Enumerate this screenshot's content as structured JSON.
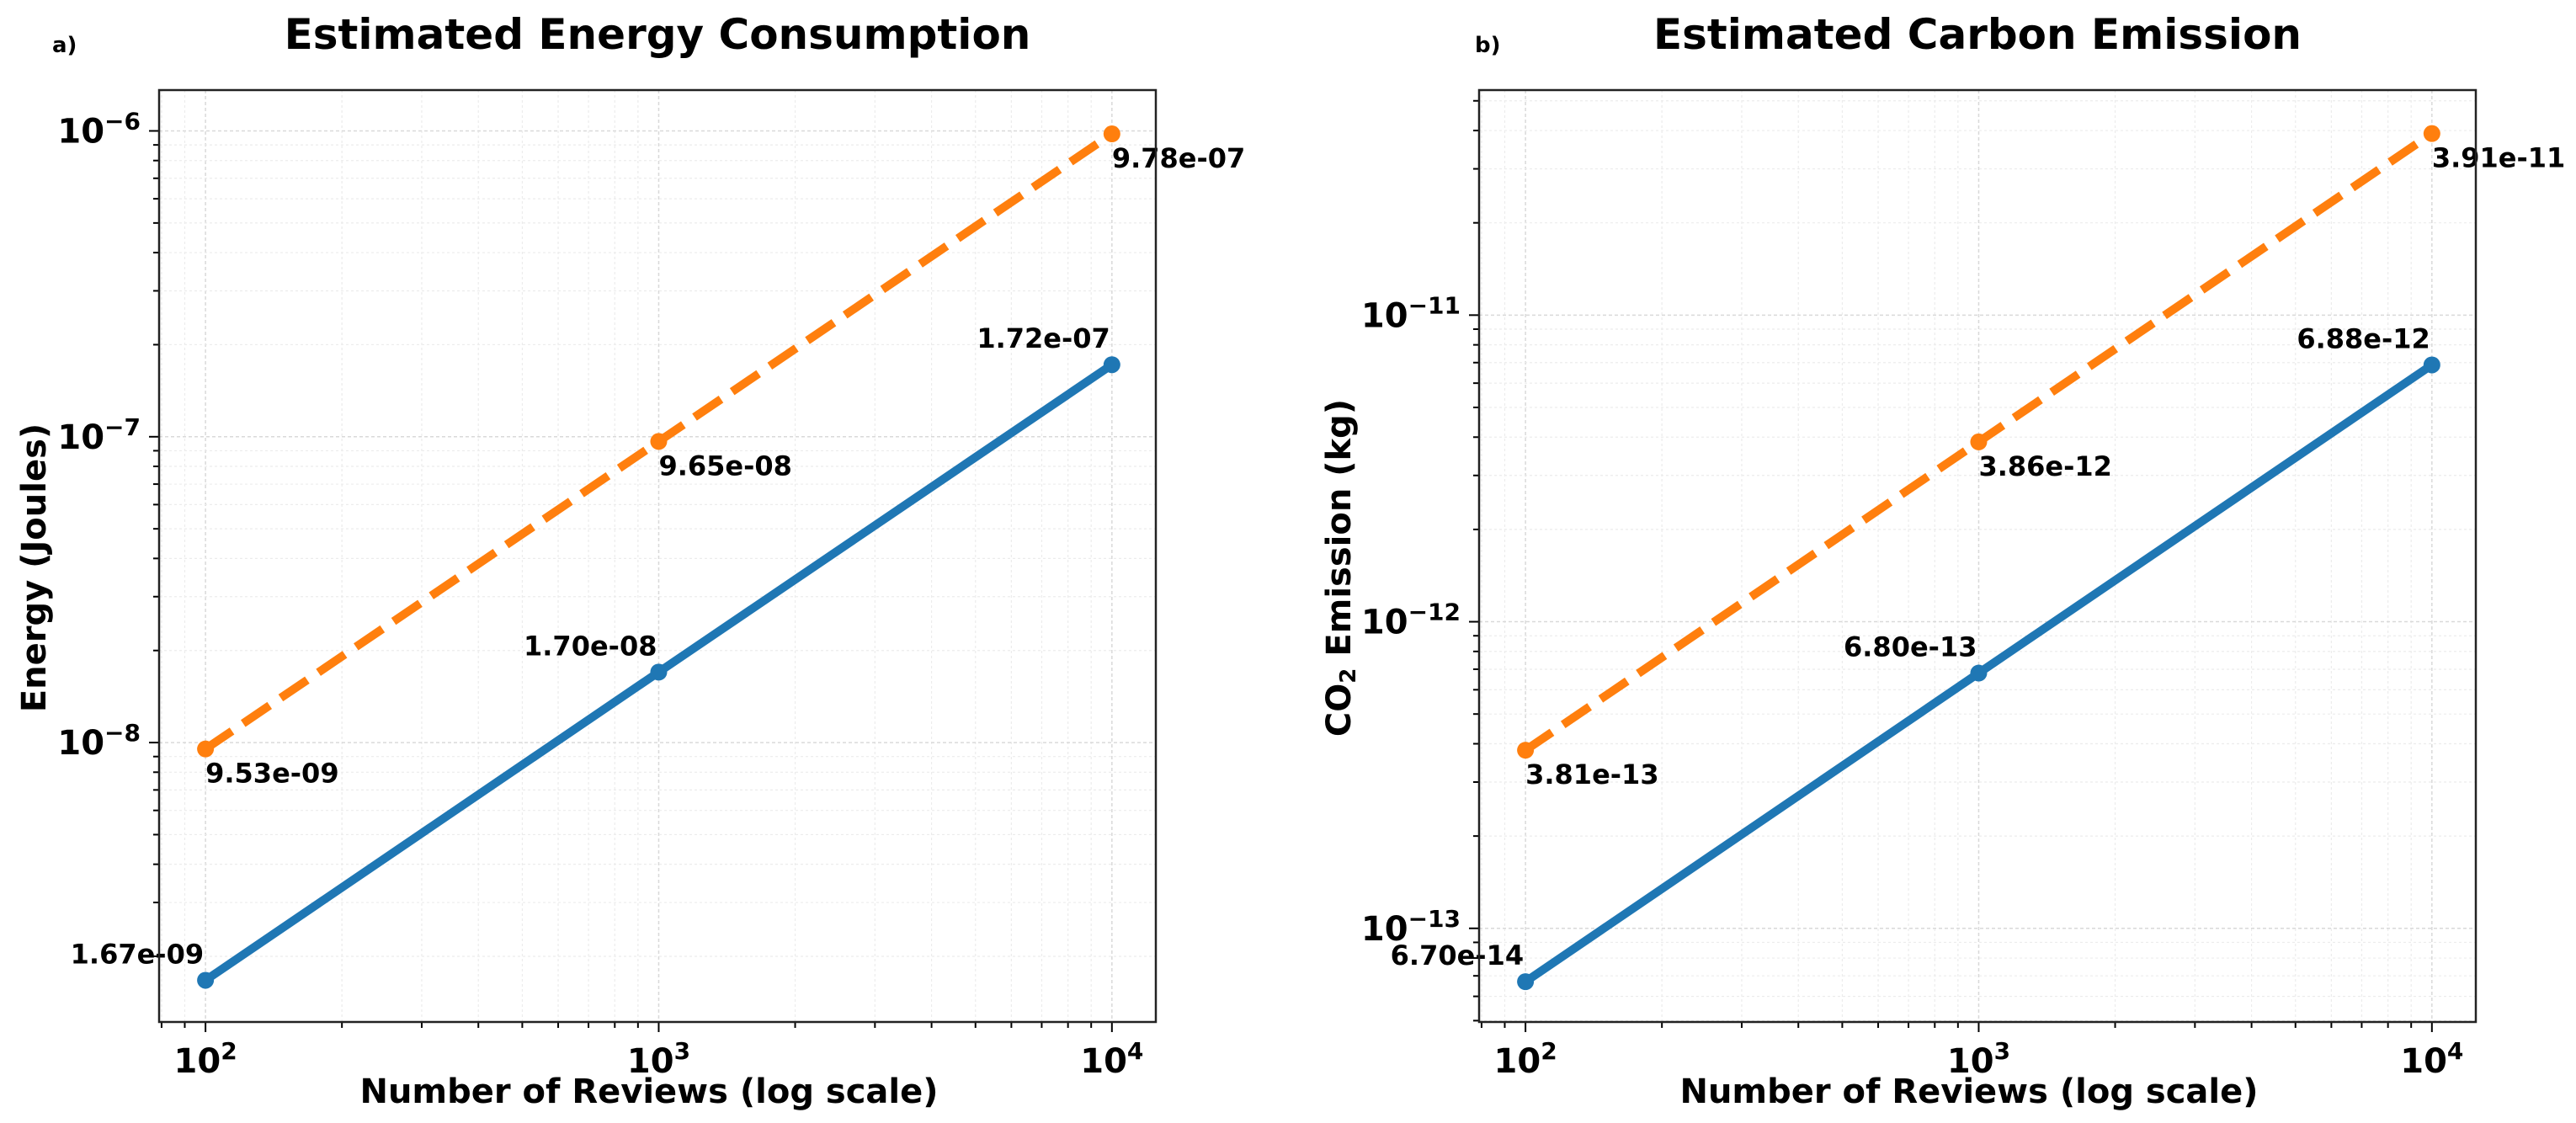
{
  "chart_data": [
    {
      "type": "line",
      "panel_label": "a)",
      "title": "Estimated Energy Consumption",
      "xlabel": "Number of Reviews (log scale)",
      "ylabel": "Energy (Joules)",
      "xscale": "log",
      "yscale": "log",
      "xlim": [
        79,
        12500
      ],
      "ylim": [
        1.22e-09,
        1.36e-06
      ],
      "grid": true,
      "x": [
        100,
        1000,
        10000
      ],
      "x_ticks": [
        {
          "value": 100,
          "base": "10",
          "exp": "2"
        },
        {
          "value": 1000,
          "base": "10",
          "exp": "3"
        },
        {
          "value": 10000,
          "base": "10",
          "exp": "4"
        }
      ],
      "y_ticks": [
        {
          "value": 1e-06,
          "base": "10",
          "exp": "−6"
        },
        {
          "value": 1e-07,
          "base": "10",
          "exp": "−7"
        },
        {
          "value": 1e-08,
          "base": "10",
          "exp": "−8"
        }
      ],
      "series": [
        {
          "name": "blue-solid",
          "color": "#1f77b4",
          "style": "solid",
          "values": [
            1.67e-09,
            1.7e-08,
            1.72e-07
          ],
          "labels": [
            "1.67e-09",
            "1.70e-08",
            "1.72e-07"
          ],
          "label_position": "above-left"
        },
        {
          "name": "orange-dashed",
          "color": "#ff7f0e",
          "style": "dashed",
          "values": [
            9.53e-09,
            9.65e-08,
            9.78e-07
          ],
          "labels": [
            "9.53e-09",
            "9.65e-08",
            "9.78e-07"
          ],
          "label_position": "below-right"
        }
      ]
    },
    {
      "type": "line",
      "panel_label": "b)",
      "title": "Estimated Carbon Emission",
      "xlabel": "Number of Reviews (log scale)",
      "ylabel_main": "CO",
      "ylabel_sub": "2",
      "ylabel_rest": " Emission (kg)",
      "xscale": "log",
      "yscale": "log",
      "xlim": [
        79,
        12500
      ],
      "ylim": [
        4.95e-14,
        5.42e-11
      ],
      "grid": true,
      "x": [
        100,
        1000,
        10000
      ],
      "x_ticks": [
        {
          "value": 100,
          "base": "10",
          "exp": "2"
        },
        {
          "value": 1000,
          "base": "10",
          "exp": "3"
        },
        {
          "value": 10000,
          "base": "10",
          "exp": "4"
        }
      ],
      "y_ticks": [
        {
          "value": 1e-11,
          "base": "10",
          "exp": "−11"
        },
        {
          "value": 1e-12,
          "base": "10",
          "exp": "−12"
        },
        {
          "value": 1e-13,
          "base": "10",
          "exp": "−13"
        }
      ],
      "series": [
        {
          "name": "blue-solid",
          "color": "#1f77b4",
          "style": "solid",
          "values": [
            6.7e-14,
            6.8e-13,
            6.88e-12
          ],
          "labels": [
            "6.70e-14",
            "6.80e-13",
            "6.88e-12"
          ],
          "label_position": "above-left"
        },
        {
          "name": "orange-dashed",
          "color": "#ff7f0e",
          "style": "dashed",
          "values": [
            3.81e-13,
            3.86e-12,
            3.91e-11
          ],
          "labels": [
            "3.81e-13",
            "3.86e-12",
            "3.91e-11"
          ],
          "label_position": "below-right"
        }
      ]
    }
  ]
}
